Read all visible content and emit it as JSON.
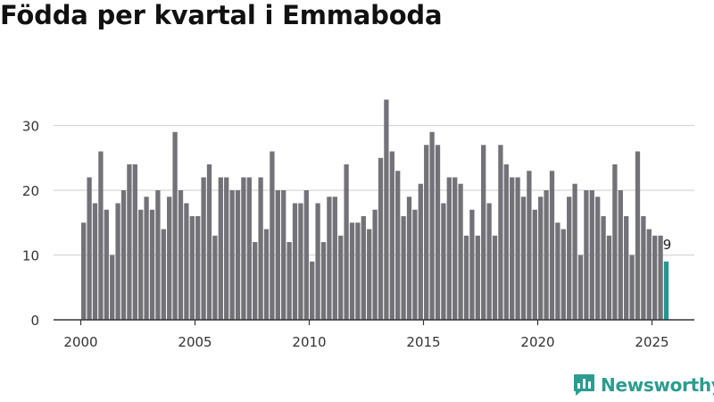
{
  "title": "Födda per kvartal i Emmaboda",
  "brand": {
    "name": "Newsworthy",
    "icon": "newsworthy-logo-icon",
    "color": "#2a9d8f"
  },
  "colors": {
    "bar": "#737278",
    "highlight": "#26968f",
    "grid": "#d7d7d7",
    "axis": "#333333"
  },
  "chart_data": {
    "type": "bar",
    "title": "Födda per kvartal i Emmaboda",
    "xlabel": "",
    "ylabel": "",
    "ylim": [
      0,
      35
    ],
    "yticks": [
      0,
      10,
      20,
      30
    ],
    "xticks": [
      "2000",
      "2005",
      "2010",
      "2015",
      "2020",
      "2025"
    ],
    "grid": true,
    "start": "2000 Q1",
    "end": "2025 Q3",
    "highlight_last": true,
    "last_value_label": "9",
    "values": [
      15,
      22,
      18,
      26,
      17,
      10,
      18,
      20,
      24,
      24,
      17,
      19,
      17,
      20,
      14,
      19,
      29,
      20,
      18,
      16,
      16,
      22,
      24,
      13,
      22,
      22,
      20,
      20,
      22,
      22,
      12,
      22,
      14,
      26,
      20,
      20,
      12,
      18,
      18,
      20,
      9,
      18,
      12,
      19,
      19,
      13,
      24,
      15,
      15,
      16,
      14,
      17,
      25,
      34,
      26,
      23,
      16,
      19,
      17,
      21,
      27,
      29,
      27,
      18,
      22,
      22,
      21,
      13,
      17,
      13,
      27,
      18,
      13,
      27,
      24,
      22,
      22,
      19,
      23,
      17,
      19,
      20,
      23,
      15,
      14,
      19,
      21,
      10,
      20,
      20,
      19,
      16,
      13,
      24,
      20,
      16,
      10,
      26,
      16,
      14,
      13,
      13,
      9
    ]
  }
}
